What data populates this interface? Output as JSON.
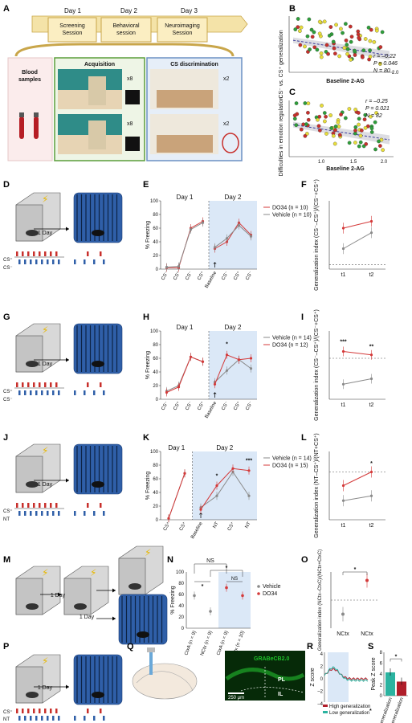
{
  "panels": [
    "A",
    "B",
    "C",
    "D",
    "E",
    "F",
    "G",
    "H",
    "I",
    "J",
    "K",
    "L",
    "M",
    "N",
    "O",
    "P",
    "Q",
    "R",
    "S"
  ],
  "timeline": {
    "days": [
      "Day 1",
      "Day 2",
      "Day 3"
    ],
    "sessions": [
      "Screening\nSession",
      "Behavioral\nsession",
      "Neuroimaging\nSession"
    ],
    "blood_label": "Blood\nsamples",
    "acq_title": "Acquisition",
    "disc_title": "CS discrimination",
    "reps": [
      "x8",
      "x8",
      "x2",
      "x2"
    ]
  },
  "colors": {
    "vehicle": "#8a8a8a",
    "do34": "#d43a3a",
    "day2_bg": "#dbe8f7",
    "dot_green": "#2e9e3a",
    "dot_yellow": "#e8dd3a",
    "dot_red": "#c8302c",
    "high": "#b01e2a",
    "low": "#2bb3a0"
  },
  "chart_data": [
    {
      "panel": "B",
      "type": "scatter",
      "xlabel": "Baseline 2-AG",
      "ylabel": "CS⁻ vs. CS⁺ generalization",
      "x_tick_labels": [
        "2.0"
      ],
      "stats": [
        "r = –0.22",
        "P = 0.046",
        "N = 80"
      ],
      "trend": "negative"
    },
    {
      "panel": "C",
      "type": "scatter",
      "xlabel": "Baseline 2-AG",
      "ylabel": "Difficulties in emotion regulation",
      "x_tick_labels": [
        "1.0",
        "1.5",
        "2.0"
      ],
      "stats": [
        "r = –0.25",
        "P = 0.021",
        "N = 82"
      ],
      "trend": "negative"
    },
    {
      "panel": "E",
      "type": "line",
      "ylabel": "% Freezing",
      "ylim": [
        0,
        100
      ],
      "y_ticks": [
        "0",
        "20",
        "40",
        "60",
        "80",
        "100"
      ],
      "day_labels": [
        "Day 1",
        "Day 2"
      ],
      "categories": [
        "CS⁻",
        "CS⁺",
        "CS⁻",
        "CS⁺",
        "Baseline",
        "CS⁻",
        "CS⁺",
        "CS⁻"
      ],
      "series": [
        {
          "name": "DO34 (n = 10)",
          "values": [
            2,
            2,
            60,
            70,
            30,
            40,
            68,
            50
          ]
        },
        {
          "name": "Vehicle (n = 10)",
          "values": [
            3,
            4,
            58,
            68,
            32,
            45,
            64,
            48
          ]
        }
      ]
    },
    {
      "panel": "F",
      "type": "line",
      "ylabel": "Generalization index (CS⁻–CS⁺)/(CS⁻+CS⁺)",
      "x": [
        "t1",
        "t2"
      ],
      "series": [
        {
          "name": "DO34",
          "values": [
            0.8,
            0.95
          ]
        },
        {
          "name": "Vehicle",
          "values": [
            0.35,
            0.7
          ]
        }
      ]
    },
    {
      "panel": "H",
      "type": "line",
      "ylabel": "% Freezing",
      "ylim": [
        0,
        100
      ],
      "y_ticks": [
        "0",
        "20",
        "40",
        "60",
        "80",
        "100"
      ],
      "day_labels": [
        "Day 1",
        "Day 2"
      ],
      "categories": [
        "CS⁻",
        "CS⁺",
        "CS⁻",
        "CS⁺",
        "Baseline",
        "CS⁻",
        "CS⁺",
        "CS⁻"
      ],
      "annotation": "*",
      "series": [
        {
          "name": "Vehicle (n = 14)",
          "values": [
            12,
            20,
            62,
            55,
            25,
            42,
            58,
            45
          ]
        },
        {
          "name": "DO34 (n = 12)",
          "values": [
            10,
            18,
            62,
            55,
            22,
            65,
            58,
            60
          ]
        }
      ]
    },
    {
      "panel": "I",
      "type": "line",
      "ylabel": "Generalization index (CS⁻–CS⁺)/(CS⁻+CS⁺)",
      "x": [
        "t1",
        "t2"
      ],
      "annotations": [
        "***",
        "**"
      ],
      "series": [
        {
          "name": "DO34",
          "values": [
            0.1,
            0.05
          ]
        },
        {
          "name": "Vehicle",
          "values": [
            -0.38,
            -0.3
          ]
        }
      ]
    },
    {
      "panel": "K",
      "type": "line",
      "ylabel": "% Freezing",
      "ylim": [
        0,
        100
      ],
      "y_ticks": [
        "0",
        "20",
        "40",
        "60",
        "80",
        "100"
      ],
      "day_labels": [
        "Day 1",
        "Day 2"
      ],
      "categories": [
        "CS⁺",
        "CS⁺",
        "Baseline",
        "NT",
        "CS⁺",
        "NT"
      ],
      "annotations": [
        "*",
        "***"
      ],
      "series": [
        {
          "name": "Vehicle (n = 14)",
          "values": [
            2,
            68,
            18,
            35,
            70,
            35
          ]
        },
        {
          "name": "DO34 (n = 15)",
          "values": [
            2,
            68,
            15,
            50,
            75,
            72
          ]
        }
      ]
    },
    {
      "panel": "L",
      "type": "line",
      "ylabel": "Generalization index (NT–CS⁺)/(NT+CS⁺)",
      "x": [
        "t1",
        "t2"
      ],
      "annotations": [
        "*"
      ],
      "series": [
        {
          "name": "DO34",
          "values": [
            -0.2,
            0.0
          ]
        },
        {
          "name": "Vehicle",
          "values": [
            -0.42,
            -0.35
          ]
        }
      ]
    },
    {
      "panel": "N",
      "type": "scatter",
      "ylabel": "% Freezing",
      "ylim": [
        0,
        100
      ],
      "y_ticks": [
        "0",
        "20",
        "40",
        "60",
        "80",
        "100"
      ],
      "categories": [
        "CtxA (n = 9)",
        "NCtx (n = 9)",
        "CtxA (n = 9)",
        "NCtx (n = 10)"
      ],
      "annotations": [
        "NS",
        "*",
        "*",
        "NS"
      ],
      "series": [
        {
          "name": "Vehicle",
          "values": [
            58,
            30,
            null,
            null
          ]
        },
        {
          "name": "DO34",
          "values": [
            null,
            null,
            72,
            58
          ]
        }
      ]
    },
    {
      "panel": "O",
      "type": "scatter",
      "ylabel": "Generalization index (NCtx–CtxC)/(NCtx+CtxC)",
      "categories": [
        "NCtx",
        "NCtx"
      ],
      "annotations": [
        "*"
      ],
      "series": [
        {
          "name": "Vehicle",
          "values": [
            -0.2
          ]
        },
        {
          "name": "DO34",
          "values": [
            0.28
          ]
        }
      ]
    },
    {
      "panel": "R",
      "type": "line",
      "ylabel": "Z score",
      "y_ticks": [
        "4",
        "2",
        "0",
        "–2",
        "–4"
      ],
      "annotations": [
        "*"
      ],
      "series": [
        {
          "name": "High generalization"
        },
        {
          "name": "Low generalization"
        }
      ]
    },
    {
      "panel": "S",
      "type": "bar",
      "ylabel": "Peak Z score",
      "y_ticks": [
        "0",
        "2",
        "4",
        "6",
        "8"
      ],
      "categories": [
        "Low generalization",
        "High generalization"
      ],
      "values": [
        4.3,
        2.6
      ],
      "annotations": [
        "*"
      ]
    }
  ],
  "schematic": {
    "one_day": "1 Day",
    "cs_minus": "CS⁻",
    "cs_plus": "CS⁺",
    "nt": "NT"
  },
  "q_panel": {
    "sensor": "GRABeCB2.0",
    "pl": "PL",
    "il": "IL",
    "scale": "250 μm"
  }
}
